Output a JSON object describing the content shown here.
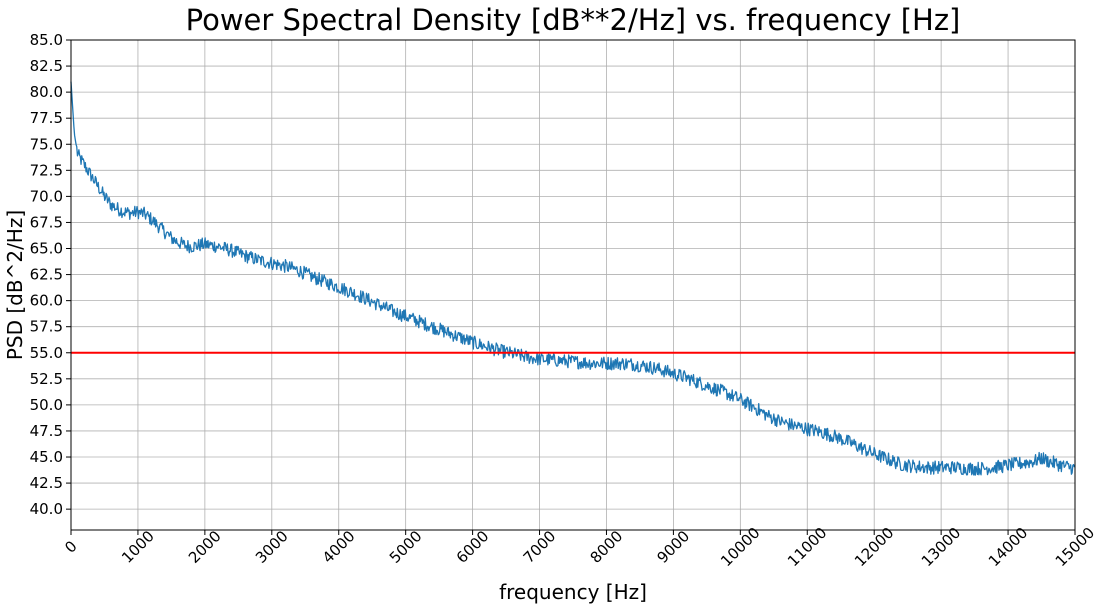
{
  "chart_data": {
    "type": "line",
    "title": "Power Spectral Density [dB**2/Hz] vs. frequency [Hz]",
    "xlabel": "frequency [Hz]",
    "ylabel": "PSD [dB^2/Hz]",
    "xlim": [
      0,
      15000
    ],
    "ylim": [
      38.0,
      85.0
    ],
    "xticks": [
      0,
      1000,
      2000,
      3000,
      4000,
      5000,
      6000,
      7000,
      8000,
      9000,
      10000,
      11000,
      12000,
      13000,
      14000,
      15000
    ],
    "xtick_labels": [
      "0",
      "1000",
      "2000",
      "3000",
      "4000",
      "5000",
      "6000",
      "7000",
      "8000",
      "9000",
      "10000",
      "11000",
      "12000",
      "13000",
      "14000",
      "15000"
    ],
    "yticks": [
      40.0,
      42.5,
      45.0,
      47.5,
      50.0,
      52.5,
      55.0,
      57.5,
      60.0,
      62.5,
      65.0,
      67.5,
      70.0,
      72.5,
      75.0,
      77.5,
      80.0,
      82.5,
      85.0
    ],
    "ytick_labels": [
      "40.0",
      "42.5",
      "45.0",
      "47.5",
      "50.0",
      "52.5",
      "55.0",
      "57.5",
      "60.0",
      "62.5",
      "65.0",
      "67.5",
      "70.0",
      "72.5",
      "75.0",
      "77.5",
      "80.0",
      "82.5",
      "85.0"
    ],
    "grid": true,
    "series": [
      {
        "color": "#1f77b4",
        "x": [
          0,
          50,
          100,
          200,
          300,
          400,
          500,
          600,
          700,
          800,
          900,
          1000,
          1100,
          1200,
          1300,
          1400,
          1500,
          1600,
          1700,
          1800,
          1900,
          2000,
          2200,
          2400,
          2600,
          2800,
          3000,
          3200,
          3400,
          3600,
          3800,
          4000,
          4200,
          4400,
          4600,
          4800,
          5000,
          5200,
          5400,
          5600,
          5800,
          6000,
          6200,
          6400,
          6600,
          6800,
          7000,
          7200,
          7400,
          7600,
          7800,
          8000,
          8200,
          8400,
          8600,
          8800,
          9000,
          9200,
          9400,
          9600,
          9800,
          10000,
          10200,
          10400,
          10600,
          10800,
          11000,
          11200,
          11400,
          11600,
          11800,
          12000,
          12200,
          12400,
          12600,
          12800,
          13000,
          13200,
          13400,
          13600,
          13800,
          14000,
          14200,
          14400,
          14500,
          14600,
          14800,
          15000
        ],
        "y": [
          81.0,
          76.0,
          74.0,
          73.0,
          72.0,
          71.0,
          70.0,
          69.2,
          68.8,
          68.5,
          68.4,
          68.5,
          68.3,
          67.8,
          67.2,
          66.6,
          66.0,
          65.6,
          65.3,
          65.2,
          65.3,
          65.4,
          65.2,
          64.8,
          64.3,
          63.9,
          63.6,
          63.3,
          62.9,
          62.3,
          61.8,
          61.3,
          60.8,
          60.2,
          59.6,
          59.0,
          58.5,
          58.0,
          57.5,
          57.0,
          56.5,
          56.0,
          55.6,
          55.2,
          54.9,
          54.6,
          54.4,
          54.3,
          54.2,
          54.1,
          54.0,
          54.0,
          54.0,
          53.9,
          53.7,
          53.4,
          53.0,
          52.6,
          52.1,
          51.6,
          51.1,
          50.5,
          49.8,
          49.0,
          48.4,
          48.0,
          47.7,
          47.4,
          47.0,
          46.5,
          45.9,
          45.3,
          44.8,
          44.3,
          44.1,
          44.0,
          44.0,
          44.0,
          43.9,
          43.9,
          44.0,
          44.2,
          44.4,
          44.6,
          44.9,
          44.6,
          44.2,
          43.9
        ]
      },
      {
        "color": "#ff0000",
        "x": [
          0,
          15000
        ],
        "y": [
          55.0,
          55.0
        ]
      }
    ]
  }
}
